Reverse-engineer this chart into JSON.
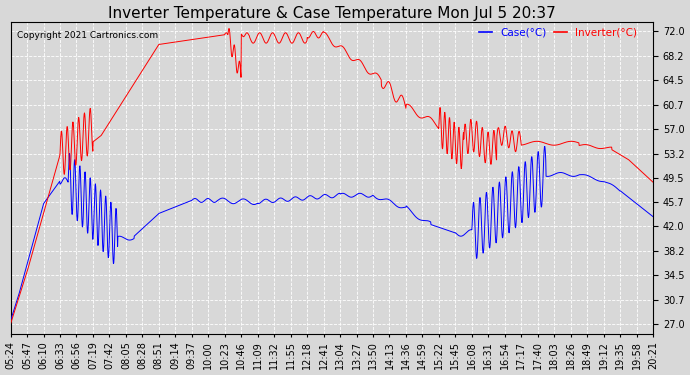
{
  "title": "Inverter Temperature & Case Temperature Mon Jul 5 20:37",
  "copyright": "Copyright 2021 Cartronics.com",
  "legend_labels": [
    "Case(°C)",
    "Inverter(°C)"
  ],
  "legend_colors": [
    "blue",
    "red"
  ],
  "yticks": [
    27.0,
    30.7,
    34.5,
    38.2,
    42.0,
    45.7,
    49.5,
    53.2,
    57.0,
    60.7,
    64.5,
    68.2,
    72.0
  ],
  "ylim": [
    25.5,
    73.5
  ],
  "background_color": "#d8d8d8",
  "grid_color": "#ffffff",
  "title_fontsize": 11,
  "tick_label_fontsize": 7,
  "xtick_labels": [
    "05:24",
    "05:47",
    "06:10",
    "06:33",
    "06:56",
    "07:19",
    "07:42",
    "08:05",
    "08:28",
    "08:51",
    "09:14",
    "09:37",
    "10:00",
    "10:23",
    "10:46",
    "11:09",
    "11:32",
    "11:55",
    "12:18",
    "12:41",
    "13:04",
    "13:27",
    "13:50",
    "14:13",
    "14:36",
    "14:59",
    "15:22",
    "15:45",
    "16:08",
    "16:31",
    "16:54",
    "17:17",
    "17:40",
    "18:03",
    "18:26",
    "18:49",
    "19:12",
    "19:35",
    "19:58",
    "20:21"
  ]
}
